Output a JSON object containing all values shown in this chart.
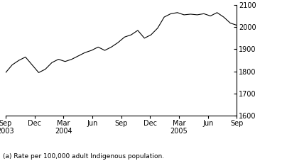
{
  "x_labels": [
    "Sep\n2003",
    "Dec",
    "Mar\n2004",
    "Jun",
    "Sep",
    "Dec",
    "Mar\n2005",
    "Jun",
    "Sep"
  ],
  "x_positions": [
    0,
    3,
    6,
    9,
    12,
    15,
    18,
    21,
    24
  ],
  "y_values": [
    1795,
    1830,
    1850,
    1865,
    1830,
    1795,
    1810,
    1840,
    1855,
    1845,
    1855,
    1870,
    1885,
    1895,
    1910,
    1895,
    1910,
    1930,
    1955,
    1965,
    1985,
    1950,
    1965,
    1995,
    2045,
    2060,
    2065,
    2055,
    2058,
    2055,
    2060,
    2050,
    2065,
    2045,
    2018,
    2008
  ],
  "ylim": [
    1600,
    2100
  ],
  "yticks": [
    1600,
    1700,
    1800,
    1900,
    2000,
    2100
  ],
  "line_color": "#000000",
  "line_width": 0.8,
  "background_color": "#ffffff",
  "footnote": "(a) Rate per 100,000 adult Indigenous population.",
  "footnote_fontsize": 6.5,
  "tick_fontsize": 7,
  "spine_color": "#000000"
}
